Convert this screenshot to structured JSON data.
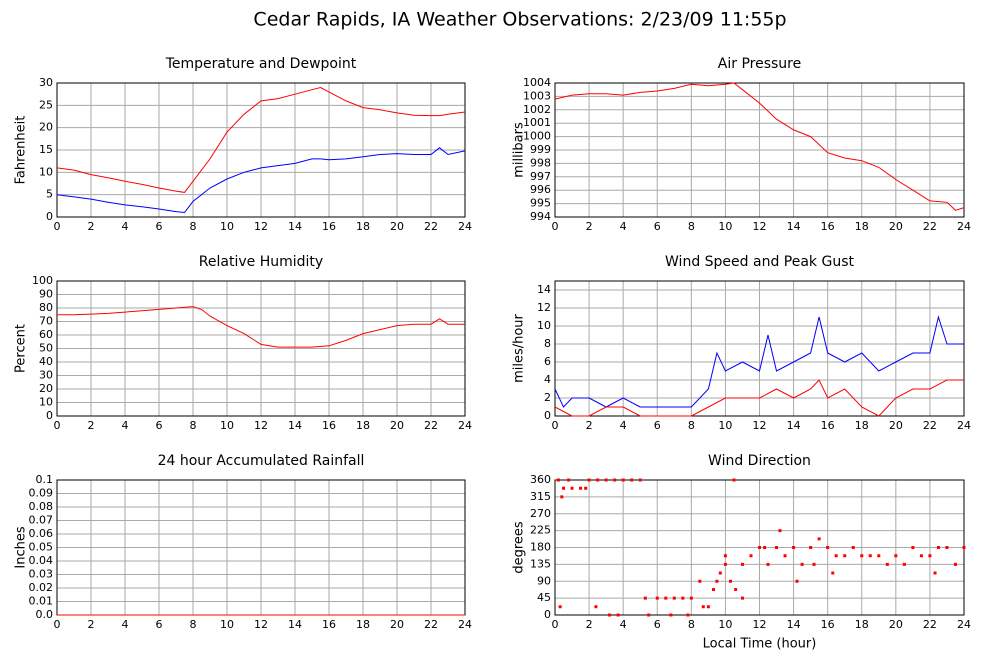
{
  "title": "Cedar Rapids, IA Weather Observations: 2/23/09 11:55p",
  "chart_data": [
    {
      "type": "line",
      "title": "Temperature and Dewpoint",
      "ylabel": "Fahrenheit",
      "xlim": [
        0,
        24
      ],
      "xticks": [
        0,
        2,
        4,
        6,
        8,
        10,
        12,
        14,
        16,
        18,
        20,
        22,
        24
      ],
      "ylim": [
        0,
        30
      ],
      "yticks": [
        0,
        5,
        10,
        15,
        20,
        25,
        30
      ],
      "grid": true,
      "x": [
        0,
        1,
        2,
        3,
        4,
        5,
        6,
        7,
        7.5,
        8,
        9,
        10,
        11,
        12,
        13,
        14,
        15,
        15.5,
        16,
        17,
        18,
        19,
        20,
        21,
        22,
        22.5,
        23,
        24
      ],
      "series": [
        {
          "color": "#ff0000",
          "values": [
            11,
            10.5,
            9.5,
            8.8,
            8,
            7.3,
            6.5,
            5.8,
            5.5,
            8,
            13,
            19,
            23,
            26,
            26.5,
            27.5,
            28.5,
            29,
            28,
            26,
            24.5,
            24,
            23.3,
            22.8,
            22.7,
            22.7,
            23,
            23.5
          ]
        },
        {
          "color": "#0000ff",
          "values": [
            5,
            4.5,
            4,
            3.3,
            2.7,
            2.3,
            1.8,
            1.2,
            1,
            3.5,
            6.5,
            8.5,
            10,
            11,
            11.5,
            12,
            13,
            13,
            12.8,
            13,
            13.5,
            14,
            14.2,
            14,
            14,
            15.5,
            14,
            14.8
          ]
        }
      ]
    },
    {
      "type": "line",
      "title": "Air Pressure",
      "ylabel": "millibars",
      "xlim": [
        0,
        24
      ],
      "xticks": [
        0,
        2,
        4,
        6,
        8,
        10,
        12,
        14,
        16,
        18,
        20,
        22,
        24
      ],
      "ylim": [
        994,
        1004
      ],
      "yticks": [
        994,
        995,
        996,
        997,
        998,
        999,
        1000,
        1001,
        1002,
        1003,
        1004
      ],
      "grid": true,
      "x": [
        0,
        1,
        2,
        3,
        4,
        5,
        6,
        7,
        8,
        9,
        10,
        10.5,
        11,
        12,
        13,
        14,
        15,
        16,
        17,
        18,
        19,
        20,
        21,
        22,
        23,
        23.5,
        24
      ],
      "series": [
        {
          "color": "#ff0000",
          "values": [
            1002.8,
            1003.1,
            1003.2,
            1003.2,
            1003.1,
            1003.3,
            1003.4,
            1003.6,
            1003.9,
            1003.8,
            1003.9,
            1004,
            1003.5,
            1002.5,
            1001.3,
            1000.5,
            1000,
            998.8,
            998.4,
            998.2,
            997.7,
            996.8,
            996,
            995.2,
            995.1,
            994.5,
            994.7
          ]
        }
      ]
    },
    {
      "type": "line",
      "title": "Relative Humidity",
      "ylabel": "Percent",
      "xlim": [
        0,
        24
      ],
      "xticks": [
        0,
        2,
        4,
        6,
        8,
        10,
        12,
        14,
        16,
        18,
        20,
        22,
        24
      ],
      "ylim": [
        0,
        100
      ],
      "yticks": [
        0,
        10,
        20,
        30,
        40,
        50,
        60,
        70,
        80,
        90,
        100
      ],
      "grid": true,
      "x": [
        0,
        1,
        2,
        3,
        4,
        5,
        6,
        7,
        8,
        8.5,
        9,
        10,
        11,
        12,
        13,
        14,
        15,
        16,
        17,
        18,
        19,
        20,
        21,
        22,
        22.5,
        23,
        24
      ],
      "series": [
        {
          "color": "#ff0000",
          "values": [
            75,
            75,
            75.5,
            76,
            77,
            78,
            79,
            80,
            81,
            79,
            74,
            67,
            61,
            53,
            51,
            51,
            51,
            52,
            56,
            61,
            64,
            67,
            68,
            68,
            72,
            68,
            68
          ]
        }
      ]
    },
    {
      "type": "line",
      "title": "Wind Speed and Peak Gust",
      "ylabel": "miles/hour",
      "xlim": [
        0,
        24
      ],
      "xticks": [
        0,
        2,
        4,
        6,
        8,
        10,
        12,
        14,
        16,
        18,
        20,
        22,
        24
      ],
      "ylim": [
        0,
        15
      ],
      "yticks": [
        0,
        2,
        4,
        6,
        8,
        10,
        12,
        14
      ],
      "grid": true,
      "series": [
        {
          "color": "#0000ff",
          "x": [
            0,
            0.5,
            1,
            2,
            3,
            4,
            5,
            6,
            7,
            8,
            9,
            9.5,
            10,
            11,
            12,
            12.5,
            13,
            14,
            15,
            15.5,
            16,
            17,
            18,
            19,
            20,
            21,
            22,
            22.5,
            23,
            24
          ],
          "values": [
            3,
            1,
            2,
            2,
            1,
            2,
            1,
            1,
            1,
            1,
            3,
            7,
            5,
            6,
            5,
            9,
            5,
            6,
            7,
            11,
            7,
            6,
            7,
            5,
            6,
            7,
            7,
            11,
            8,
            8
          ]
        },
        {
          "color": "#ff0000",
          "x": [
            0,
            1,
            2,
            3,
            4,
            5,
            6,
            7,
            8,
            9,
            10,
            11,
            12,
            13,
            14,
            15,
            15.5,
            16,
            17,
            18,
            19,
            20,
            21,
            22,
            23,
            24
          ],
          "values": [
            1,
            0,
            0,
            1,
            1,
            0,
            0,
            0,
            0,
            1,
            2,
            2,
            2,
            3,
            2,
            3,
            4,
            2,
            3,
            1,
            0,
            2,
            3,
            3,
            4,
            4
          ]
        }
      ]
    },
    {
      "type": "line",
      "title": "24 hour Accumulated Rainfall",
      "ylabel": "Inches",
      "xlim": [
        0,
        24
      ],
      "xticks": [
        0,
        2,
        4,
        6,
        8,
        10,
        12,
        14,
        16,
        18,
        20,
        22,
        24
      ],
      "ylim": [
        0,
        0.1
      ],
      "yticks": [
        {
          "value": 0,
          "label": "0.0"
        },
        0.01,
        0.02,
        0.03,
        0.04,
        0.05,
        0.06,
        0.07,
        0.08,
        0.09,
        0.1
      ],
      "grid": true,
      "x": [
        0,
        24
      ],
      "series": [
        {
          "color": "#ff0000",
          "values": [
            0,
            0
          ]
        }
      ]
    },
    {
      "type": "scatter",
      "title": "Wind Direction",
      "ylabel": "degrees",
      "xlabel": "Local Time (hour)",
      "xlim": [
        0,
        24
      ],
      "xticks": [
        0,
        2,
        4,
        6,
        8,
        10,
        12,
        14,
        16,
        18,
        20,
        22,
        24
      ],
      "ylim": [
        0,
        360
      ],
      "yticks": [
        0,
        45,
        90,
        135,
        180,
        225,
        270,
        315,
        360
      ],
      "grid": true,
      "color": "#ff0000",
      "x": [
        0.2,
        0.3,
        0.4,
        0.5,
        0.8,
        1,
        1.5,
        1.8,
        2,
        2.5,
        2.4,
        3,
        3.2,
        3.5,
        3.7,
        4,
        4.5,
        5,
        5.3,
        5.5,
        6,
        6.5,
        6.8,
        7,
        7.5,
        7.8,
        8,
        8.5,
        8.7,
        9,
        9.3,
        9.5,
        9.7,
        10,
        10,
        10.3,
        10.5,
        10.6,
        11,
        11,
        11.5,
        12,
        12.3,
        12.5,
        13,
        13.2,
        13.5,
        14,
        14.2,
        14.5,
        15,
        15.2,
        15.5,
        16,
        16.3,
        16.5,
        17,
        17.5,
        18,
        18.5,
        19,
        19.5,
        20,
        20.5,
        21,
        21.5,
        22,
        22.3,
        22.5,
        23,
        23.5,
        24
      ],
      "values": [
        360,
        22,
        315,
        338,
        360,
        338,
        338,
        338,
        360,
        360,
        22,
        360,
        0,
        360,
        0,
        360,
        360,
        360,
        45,
        0,
        45,
        45,
        0,
        45,
        45,
        0,
        45,
        90,
        22,
        22,
        68,
        90,
        112,
        135,
        158,
        90,
        360,
        68,
        135,
        45,
        158,
        180,
        180,
        135,
        180,
        225,
        158,
        180,
        90,
        135,
        180,
        135,
        203,
        180,
        112,
        158,
        158,
        180,
        158,
        158,
        158,
        135,
        158,
        135,
        180,
        158,
        158,
        112,
        180,
        180,
        135,
        180
      ]
    }
  ]
}
